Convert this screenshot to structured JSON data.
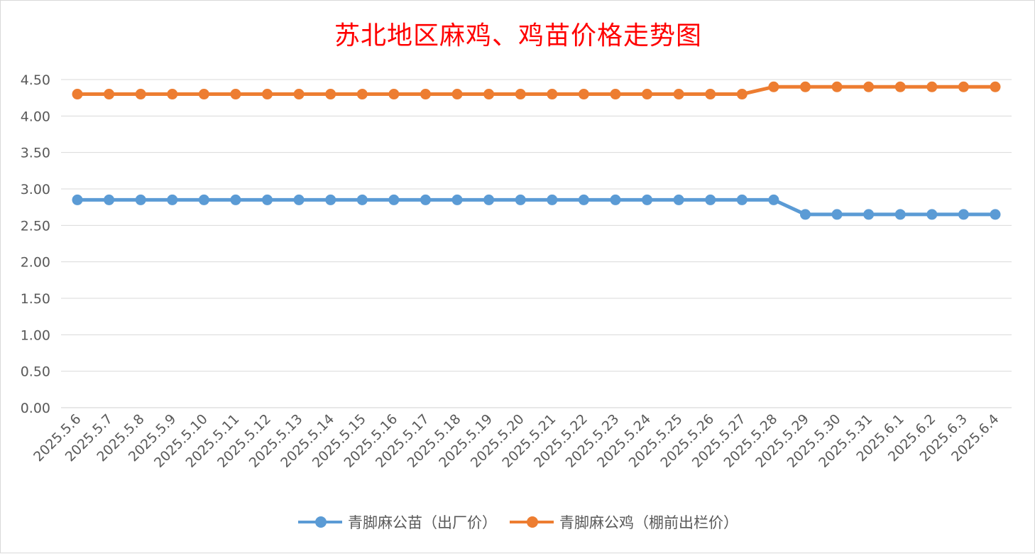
{
  "chart_data": {
    "type": "line",
    "title": "苏北地区麻鸡、鸡苗价格走势图",
    "xlabel": "",
    "ylabel": "",
    "ylim": [
      0,
      4.5
    ],
    "y_ticks": [
      "0.00",
      "0.50",
      "1.00",
      "1.50",
      "2.00",
      "2.50",
      "3.00",
      "3.50",
      "4.00",
      "4.50"
    ],
    "grid": true,
    "legend_position": "bottom",
    "categories": [
      "2025.5.6",
      "2025.5.7",
      "2025.5.8",
      "2025.5.9",
      "2025.5.10",
      "2025.5.11",
      "2025.5.12",
      "2025.5.13",
      "2025.5.14",
      "2025.5.15",
      "2025.5.16",
      "2025.5.17",
      "2025.5.18",
      "2025.5.19",
      "2025.5.20",
      "2025.5.21",
      "2025.5.22",
      "2025.5.23",
      "2025.5.24",
      "2025.5.25",
      "2025.5.26",
      "2025.5.27",
      "2025.5.28",
      "2025.5.29",
      "2025.5.30",
      "2025.5.31",
      "2025.6.1",
      "2025.6.2",
      "2025.6.3",
      "2025.6.4"
    ],
    "series": [
      {
        "name": "青脚麻公苗（出厂价）",
        "color": "#5b9bd5",
        "values": [
          2.85,
          2.85,
          2.85,
          2.85,
          2.85,
          2.85,
          2.85,
          2.85,
          2.85,
          2.85,
          2.85,
          2.85,
          2.85,
          2.85,
          2.85,
          2.85,
          2.85,
          2.85,
          2.85,
          2.85,
          2.85,
          2.85,
          2.85,
          2.65,
          2.65,
          2.65,
          2.65,
          2.65,
          2.65,
          2.65
        ]
      },
      {
        "name": "青脚麻公鸡（棚前出栏价）",
        "color": "#ed7d31",
        "values": [
          4.3,
          4.3,
          4.3,
          4.3,
          4.3,
          4.3,
          4.3,
          4.3,
          4.3,
          4.3,
          4.3,
          4.3,
          4.3,
          4.3,
          4.3,
          4.3,
          4.3,
          4.3,
          4.3,
          4.3,
          4.3,
          4.3,
          4.4,
          4.4,
          4.4,
          4.4,
          4.4,
          4.4,
          4.4,
          4.4
        ]
      }
    ]
  }
}
